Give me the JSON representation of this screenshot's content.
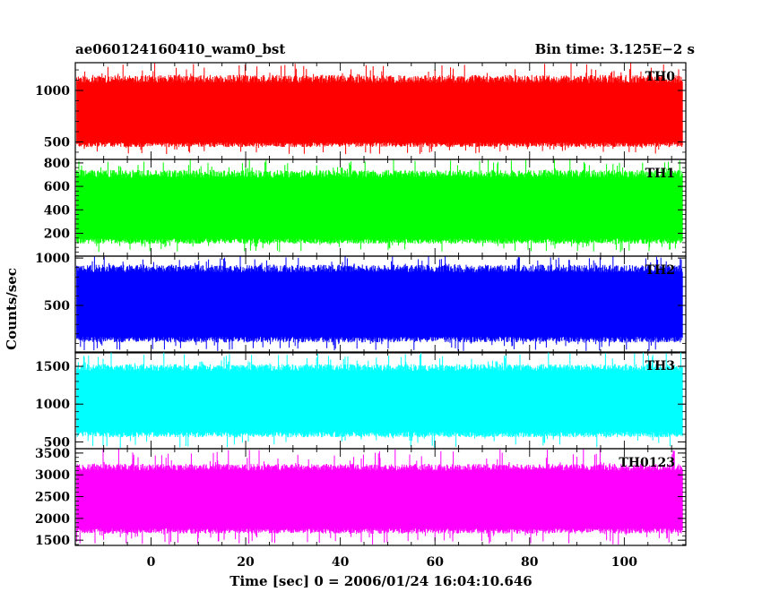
{
  "chart_data": {
    "type": "line",
    "title_left": "ae060124160410_wam0_bst",
    "title_right": "Bin time: 3.125E−2 s",
    "xlabel": "Time [sec] 0 = 2006/01/24 16:04:10.646",
    "ylabel": "Counts/sec",
    "x_range": [
      -16,
      113
    ],
    "x_ticks": [
      0,
      20,
      40,
      60,
      80,
      100
    ],
    "data_x_range": [
      -15.7,
      112.3
    ],
    "bin_time_s": 0.03125,
    "grid": false,
    "panels": [
      {
        "name": "TH0",
        "color": "#ff0000",
        "ylim": [
          330,
          1270
        ],
        "yticks": [
          500,
          1000
        ],
        "band_low": 450,
        "band_high": 1150,
        "mean": 760,
        "spike_low": 380,
        "spike_high": 1270
      },
      {
        "name": "TH1",
        "color": "#00ff00",
        "ylim": [
          5,
          830
        ],
        "yticks": [
          200,
          400,
          600,
          800
        ],
        "band_low": 110,
        "band_high": 740,
        "mean": 410,
        "spike_low": 40,
        "spike_high": 830
      },
      {
        "name": "TH2",
        "color": "#0000ff",
        "ylim": [
          0,
          1020
        ],
        "yticks": [
          500,
          1000
        ],
        "band_low": 110,
        "band_high": 930,
        "mean": 520,
        "spike_low": 20,
        "spike_high": 1020
      },
      {
        "name": "TH3",
        "color": "#00ffff",
        "ylim": [
          410,
          1690
        ],
        "yticks": [
          500,
          1000,
          1500
        ],
        "band_low": 560,
        "band_high": 1530,
        "mean": 1060,
        "spike_low": 420,
        "spike_high": 1690
      },
      {
        "name": "TH0123",
        "color": "#ff00ff",
        "ylim": [
          1380,
          3600
        ],
        "yticks": [
          1500,
          2000,
          2500,
          3000,
          3500
        ],
        "band_low": 1650,
        "band_high": 3250,
        "mean": 2470,
        "spike_low": 1400,
        "spike_high": 3600
      }
    ]
  }
}
